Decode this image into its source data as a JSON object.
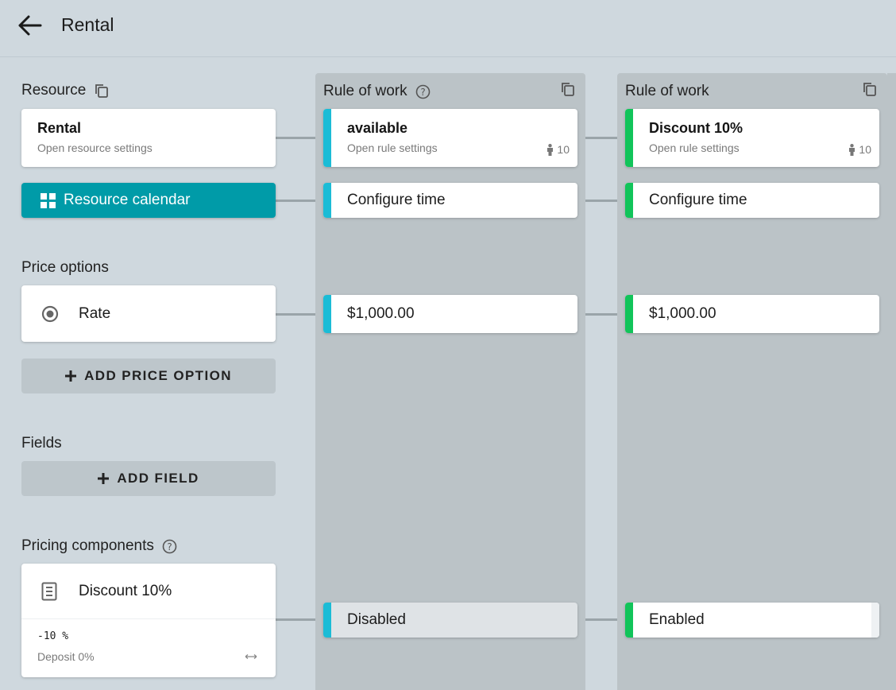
{
  "header": {
    "title": "Rental",
    "back_icon": "arrow-left-icon"
  },
  "colors": {
    "teal": "#009ba8",
    "accent_cyan": "#1bbcd6",
    "accent_green": "#11c45a"
  },
  "left": {
    "resource": {
      "label": "Resource",
      "card_title": "Rental",
      "card_sub": "Open resource settings",
      "calendar_button": "Resource calendar"
    },
    "price_options": {
      "label": "Price options",
      "item": "Rate",
      "add_button": "ADD PRICE OPTION"
    },
    "fields": {
      "label": "Fields",
      "add_button": "ADD FIELD"
    },
    "pricing_components": {
      "label": "Pricing components",
      "item": "Discount 10%",
      "value": "-10 %",
      "deposit": "Deposit 0%"
    }
  },
  "columns": [
    {
      "title": "Rule of work",
      "rule_name": "available",
      "rule_sub": "Open rule settings",
      "capacity": "10",
      "time_label": "Configure time",
      "price": "$1,000.00",
      "component_state": "Disabled"
    },
    {
      "title": "Rule of work",
      "rule_name": "Discount 10%",
      "rule_sub": "Open rule settings",
      "capacity": "10",
      "time_label": "Configure time",
      "price": "$1,000.00",
      "component_state": "Enabled"
    }
  ]
}
